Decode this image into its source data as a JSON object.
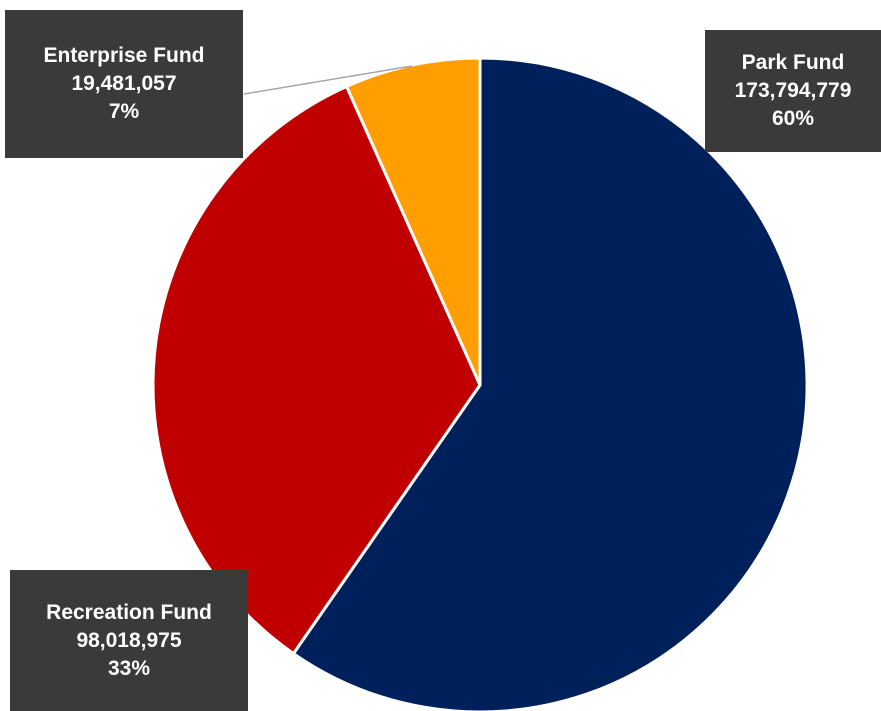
{
  "chart_data": {
    "type": "pie",
    "title": "",
    "slices": [
      {
        "name": "Park Fund",
        "value": 173794779,
        "value_label": "173,794,779",
        "percent_label": "60%",
        "color": "#00205b"
      },
      {
        "name": "Recreation Fund",
        "value": 98018975,
        "value_label": "98,018,975",
        "percent_label": "33%",
        "color": "#c00000"
      },
      {
        "name": "Enterprise Fund",
        "value": 19481057,
        "value_label": "19,481,057",
        "percent_label": "7%",
        "color": "#ff9e00"
      }
    ],
    "start_angle_deg": 0,
    "direction": "clockwise",
    "slice_border_color": "#ffffff",
    "label_box_color": "#3a3a3a",
    "label_text_color": "#ffffff",
    "leader_line_color": "#a6a6a6"
  }
}
